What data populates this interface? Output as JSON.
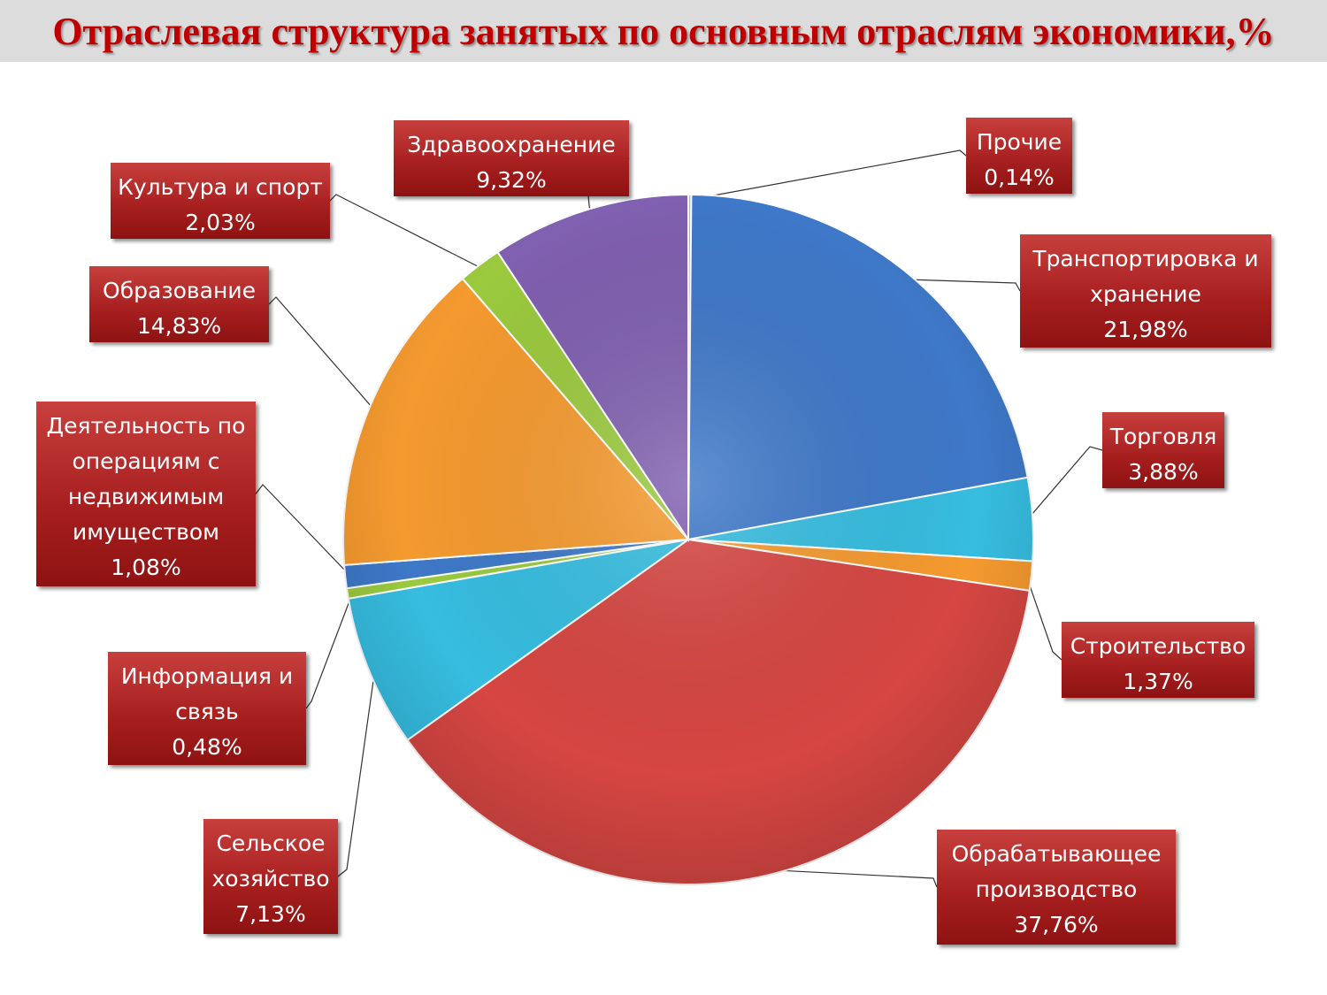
{
  "title": "Отраслевая структура занятых по основным отраслям экономики,%",
  "chart_data": {
    "type": "pie",
    "title": "Отраслевая структура занятых по основным отраслям экономики,%",
    "slices": [
      {
        "name": "Прочие",
        "value": 0.14,
        "label": "0,14%",
        "color": "#a6b8d8"
      },
      {
        "name": "Транспортировка и хранение",
        "value": 21.98,
        "label": "21,98%",
        "color": "#3e78c8"
      },
      {
        "name": "Торговля",
        "value": 3.88,
        "label": "3,88%",
        "color": "#36bde0"
      },
      {
        "name": "Строительство",
        "value": 1.37,
        "label": "1,37%",
        "color": "#f59a2f"
      },
      {
        "name": "Обрабатывающее производство",
        "value": 37.76,
        "label": "37,76%",
        "color": "#d64642"
      },
      {
        "name": "Сельское хозяйство",
        "value": 7.13,
        "label": "7,13%",
        "color": "#36bde0"
      },
      {
        "name": "Информация и связь",
        "value": 0.48,
        "label": "0,48%",
        "color": "#9bca3e"
      },
      {
        "name": "Деятельность по операциям с недвижимым имуществом",
        "value": 1.08,
        "label": "1,08%",
        "color": "#3e78c8"
      },
      {
        "name": "Образование",
        "value": 14.83,
        "label": "14,83%",
        "color": "#f59a2f"
      },
      {
        "name": "Культура и спорт",
        "value": 2.03,
        "label": "2,03%",
        "color": "#9bca3e"
      },
      {
        "name": "Здравоохранение",
        "value": 9.32,
        "label": "9,32%",
        "color": "#8060b0"
      }
    ],
    "callout_color": "#b02a2a",
    "legend": "none"
  }
}
